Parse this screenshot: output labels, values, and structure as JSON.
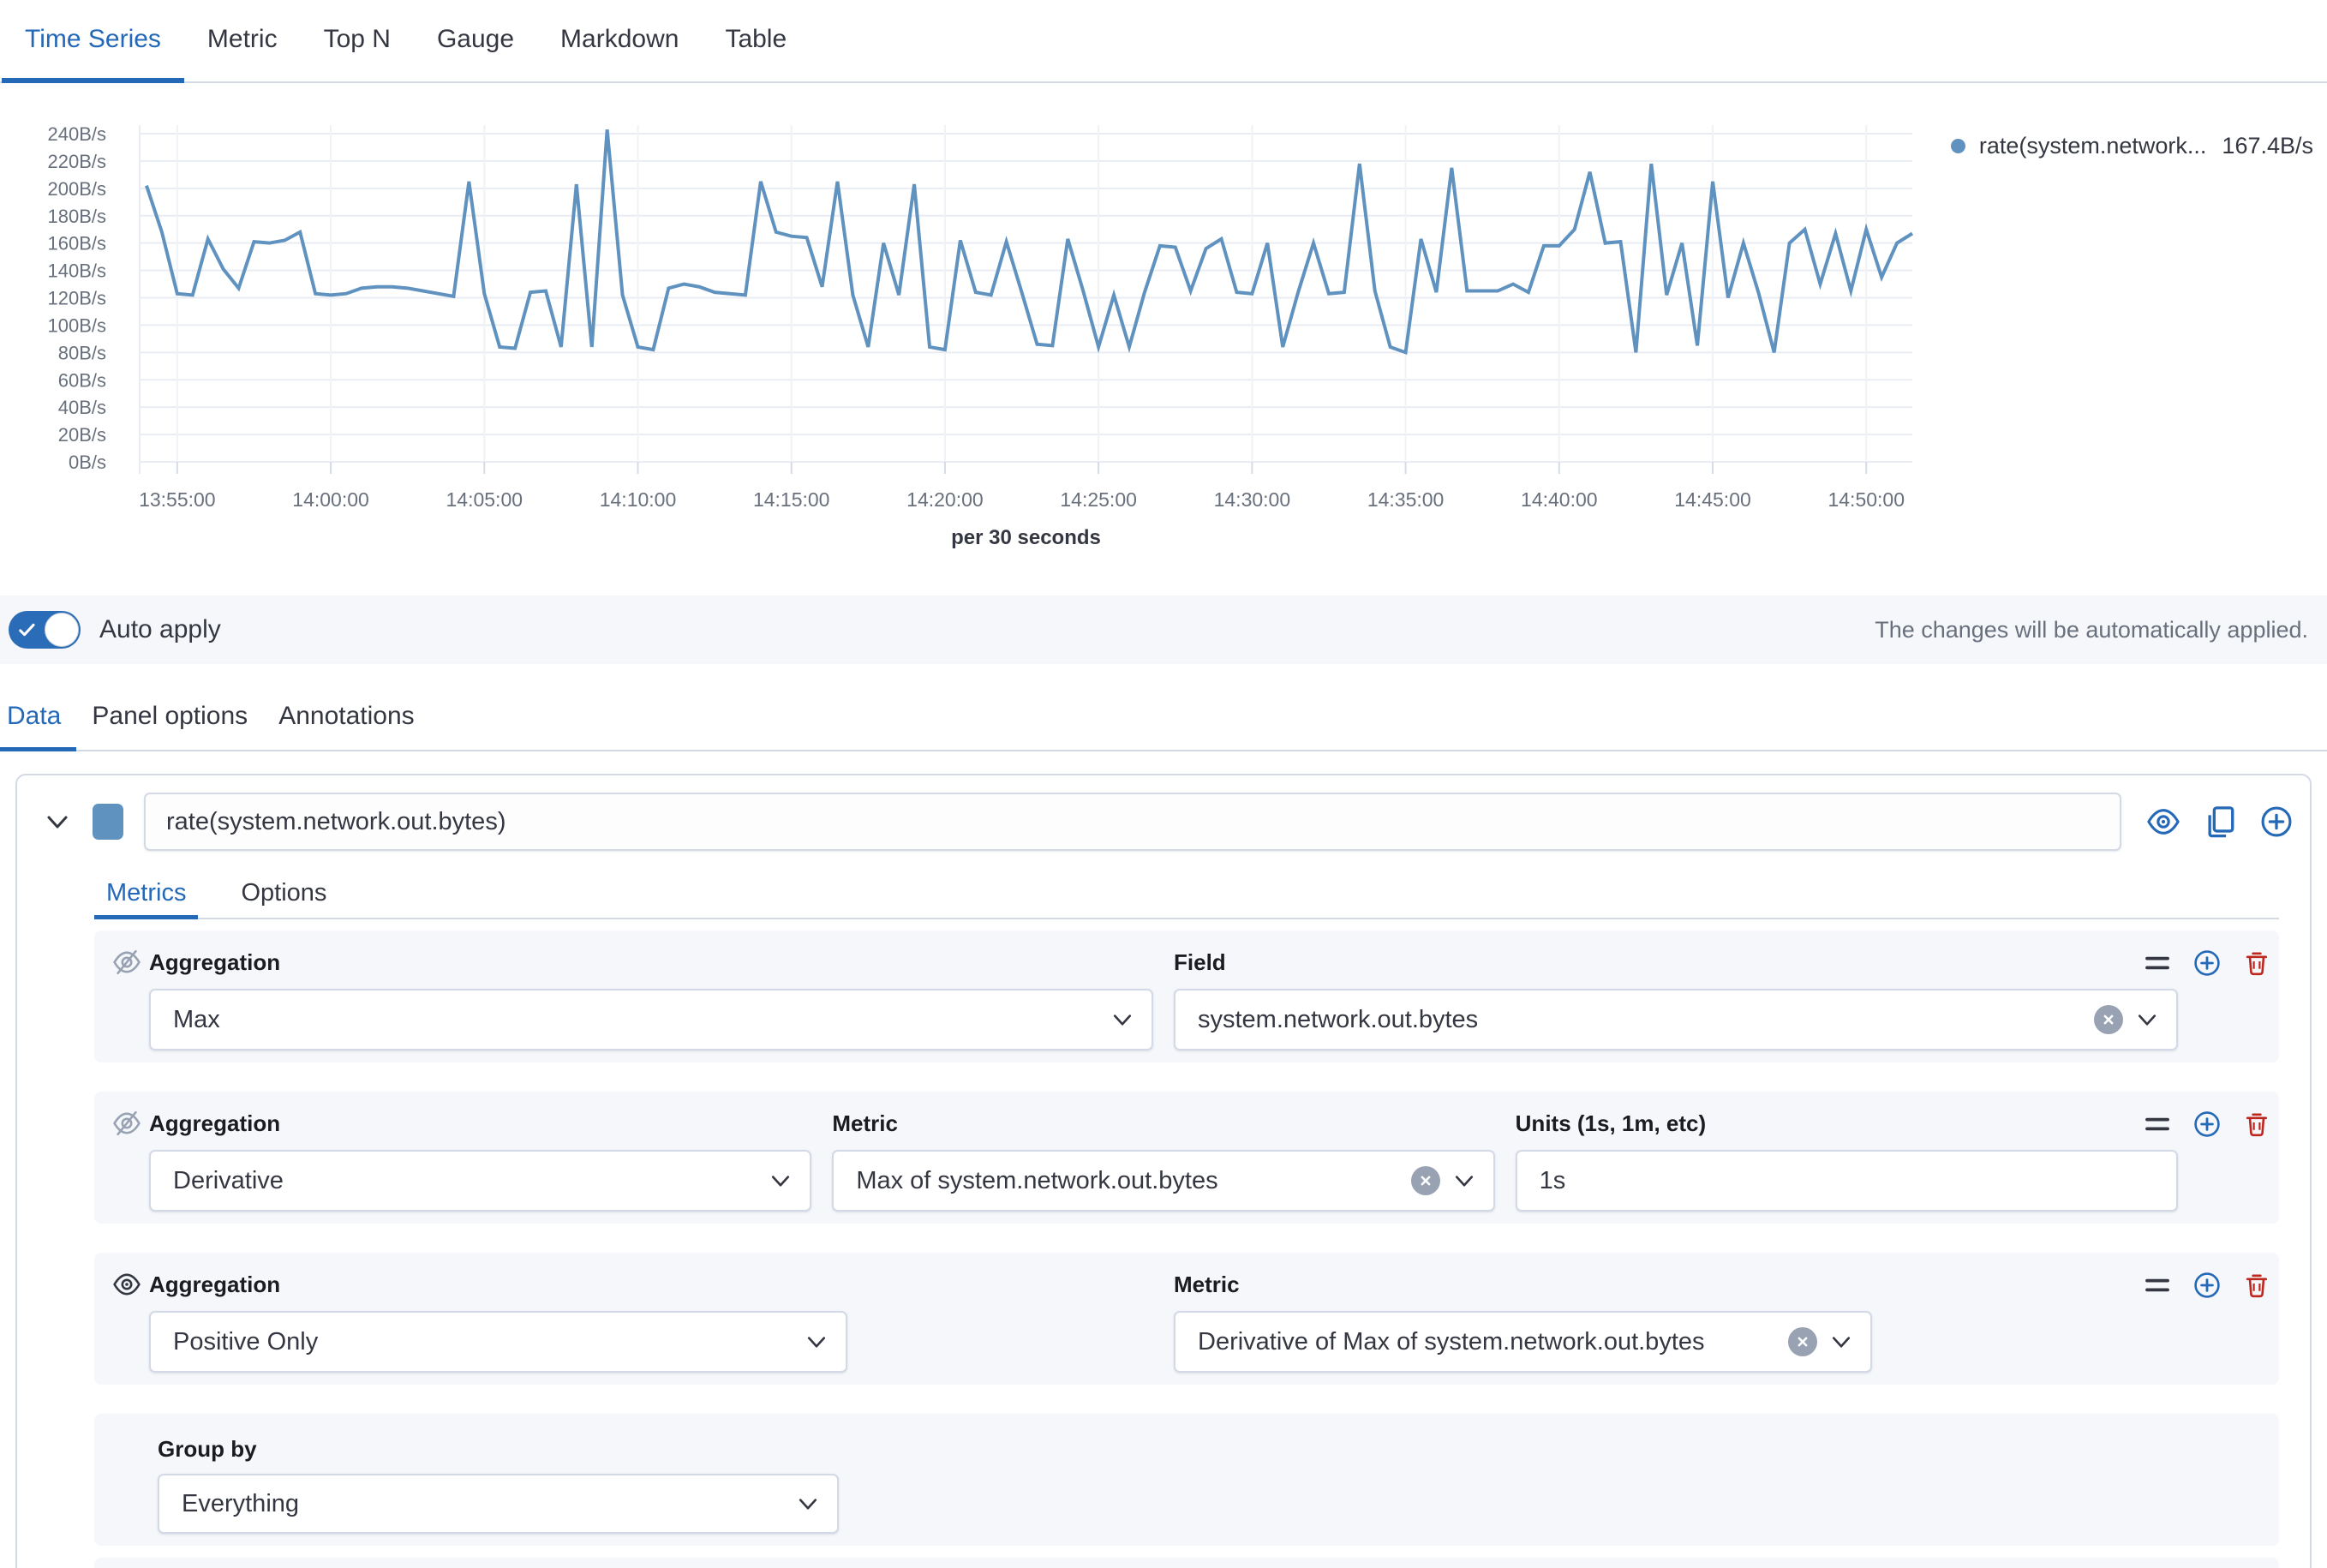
{
  "view_tabs": [
    {
      "label": "Time Series",
      "active": true
    },
    {
      "label": "Metric",
      "active": false
    },
    {
      "label": "Top N",
      "active": false
    },
    {
      "label": "Gauge",
      "active": false
    },
    {
      "label": "Markdown",
      "active": false
    },
    {
      "label": "Table",
      "active": false
    }
  ],
  "chart_data": {
    "type": "line",
    "title": "",
    "xlabel": "",
    "ylabel": "",
    "x_caption": "per 30 seconds",
    "start_time": "13:54:00",
    "interval_seconds": 30,
    "ylim": [
      0,
      240
    ],
    "unit": "B/s",
    "grid": true,
    "legend_position": "top-right",
    "y_ticks": [
      "0B/s",
      "20B/s",
      "40B/s",
      "60B/s",
      "80B/s",
      "100B/s",
      "120B/s",
      "140B/s",
      "160B/s",
      "180B/s",
      "200B/s",
      "220B/s",
      "240B/s"
    ],
    "x_ticks": [
      "13:55:00",
      "14:00:00",
      "14:05:00",
      "14:10:00",
      "14:15:00",
      "14:20:00",
      "14:25:00",
      "14:30:00",
      "14:35:00",
      "14:40:00",
      "14:45:00",
      "14:50:00"
    ],
    "series": [
      {
        "name": "rate(system.network.out.bytes)",
        "legend_label": "rate(system.network...",
        "legend_value": "167.4B/s",
        "color": "#6092C0",
        "values": [
          202,
          168,
          123,
          122,
          163,
          141,
          127,
          161,
          160,
          162,
          168,
          123,
          122,
          123,
          127,
          128,
          128,
          127,
          125,
          123,
          121,
          205,
          123,
          84,
          83,
          124,
          125,
          84,
          203,
          84,
          243,
          122,
          84,
          82,
          127,
          130,
          128,
          124,
          123,
          122,
          205,
          168,
          165,
          164,
          128,
          205,
          122,
          84,
          160,
          122,
          203,
          84,
          82,
          162,
          124,
          122,
          161,
          124,
          86,
          85,
          163,
          125,
          84,
          122,
          84,
          124,
          158,
          157,
          125,
          156,
          163,
          124,
          123,
          160,
          84,
          124,
          160,
          123,
          124,
          218,
          125,
          84,
          80,
          163,
          124,
          215,
          125,
          125,
          125,
          130,
          124,
          158,
          158,
          170,
          212,
          160,
          161,
          80,
          218,
          122,
          160,
          85,
          205,
          120,
          160,
          123,
          80,
          160,
          170,
          130,
          167,
          125,
          170,
          135,
          160,
          167
        ]
      }
    ]
  },
  "auto_apply": {
    "label": "Auto apply",
    "enabled": true,
    "note": "The changes will be automatically applied."
  },
  "config_tabs": [
    {
      "label": "Data",
      "active": true
    },
    {
      "label": "Panel options",
      "active": false
    },
    {
      "label": "Annotations",
      "active": false
    }
  ],
  "series_editor": {
    "label": "rate(system.network.out.bytes)",
    "color": "#6092C0",
    "tabs": [
      {
        "label": "Metrics",
        "active": true
      },
      {
        "label": "Options",
        "active": false
      }
    ],
    "metrics": [
      {
        "visibility": "hidden",
        "aggregation_label": "Aggregation",
        "aggregation_value": "Max",
        "field_label": "Field",
        "field_value": "system.network.out.bytes"
      },
      {
        "visibility": "hidden",
        "aggregation_label": "Aggregation",
        "aggregation_value": "Derivative",
        "metric_label": "Metric",
        "metric_value": "Max of system.network.out.bytes",
        "units_label": "Units (1s, 1m, etc)",
        "units_value": "1s"
      },
      {
        "visibility": "visible",
        "aggregation_label": "Aggregation",
        "aggregation_value": "Positive Only",
        "metric_label": "Metric",
        "metric_value": "Derivative of Max of system.network.out.bytes"
      }
    ],
    "group_by": {
      "label": "Group by",
      "value": "Everything"
    }
  },
  "colors": {
    "primary": "#2468B8",
    "series_line": "#6092C0",
    "danger": "#BD271E",
    "panel_border": "#D3DAE6",
    "row_background": "#F5F7FA",
    "muted_text": "#69707D"
  },
  "icons": {
    "series_expander": "chevron-down",
    "series_visibility": "eye",
    "series_clone": "copy",
    "series_add": "plus-in-circle",
    "metric_hidden": "eye-slash",
    "metric_visible": "eye",
    "metric_drag": "drag-handle",
    "metric_add": "plus-in-circle",
    "metric_delete": "trash",
    "combo_clear": "x-in-circle",
    "select_caret": "chevron-down",
    "toggle_check": "check"
  }
}
